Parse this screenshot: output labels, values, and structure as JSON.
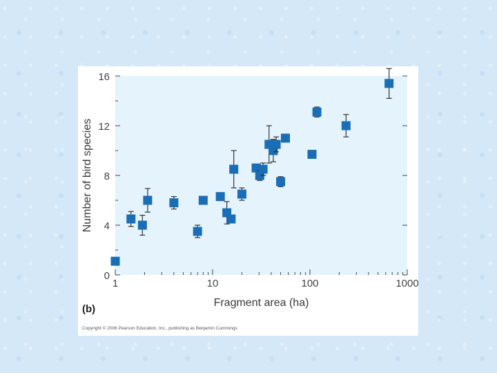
{
  "chart_data": {
    "type": "scatter",
    "title": "",
    "xlabel": "Fragment area (ha)",
    "ylabel": "Number of bird species",
    "xscale": "log",
    "xlim": [
      1,
      1000
    ],
    "ylim": [
      0,
      16
    ],
    "xticks": [
      {
        "value": 1,
        "label": "1"
      },
      {
        "value": 10,
        "label": "10"
      },
      {
        "value": 100,
        "label": "100"
      },
      {
        "value": 1000,
        "label": "1000"
      }
    ],
    "yticks": [
      {
        "value": 0,
        "label": "0"
      },
      {
        "value": 4,
        "label": "4"
      },
      {
        "value": 8,
        "label": "8"
      },
      {
        "value": 12,
        "label": "12"
      },
      {
        "value": 16,
        "label": "16"
      }
    ],
    "marker_color": "#1a6eb6",
    "plot_bg": "#e4f3fc",
    "points": [
      {
        "x": 1.0,
        "y": 1.1,
        "err": 0
      },
      {
        "x": 1.45,
        "y": 4.5,
        "err": 0.6
      },
      {
        "x": 1.9,
        "y": 4.0,
        "err": 0.8
      },
      {
        "x": 2.15,
        "y": 6.0,
        "err": 0.95
      },
      {
        "x": 4.0,
        "y": 5.8,
        "err": 0.5
      },
      {
        "x": 7.0,
        "y": 3.5,
        "err": 0.5
      },
      {
        "x": 8.0,
        "y": 6.0,
        "err": 0
      },
      {
        "x": 12.0,
        "y": 6.3,
        "err": 0
      },
      {
        "x": 14.0,
        "y": 5.0,
        "err": 0.9
      },
      {
        "x": 15.5,
        "y": 4.5,
        "err": 0
      },
      {
        "x": 16.5,
        "y": 8.5,
        "err": 1.5
      },
      {
        "x": 20.0,
        "y": 6.5,
        "err": 0.5
      },
      {
        "x": 28.0,
        "y": 8.6,
        "err": 0
      },
      {
        "x": 30.5,
        "y": 8.0,
        "err": 0.4
      },
      {
        "x": 33.0,
        "y": 8.5,
        "err": 0.5
      },
      {
        "x": 38.0,
        "y": 10.5,
        "err": 1.5
      },
      {
        "x": 42.0,
        "y": 10.0,
        "err": 0.9
      },
      {
        "x": 45.0,
        "y": 10.5,
        "err": 0.6
      },
      {
        "x": 50.0,
        "y": 7.5,
        "err": 0.4
      },
      {
        "x": 56.0,
        "y": 11.0,
        "err": 0
      },
      {
        "x": 105.0,
        "y": 9.7,
        "err": 0
      },
      {
        "x": 118.0,
        "y": 13.1,
        "err": 0.4
      },
      {
        "x": 235.0,
        "y": 12.0,
        "err": 0.9
      },
      {
        "x": 650.0,
        "y": 15.4,
        "err": 1.2
      }
    ]
  },
  "figure": {
    "panel_label": "(b)",
    "copyright": "Copyright © 2006 Pearson Education, Inc., publishing as Benjamin Cummings"
  }
}
